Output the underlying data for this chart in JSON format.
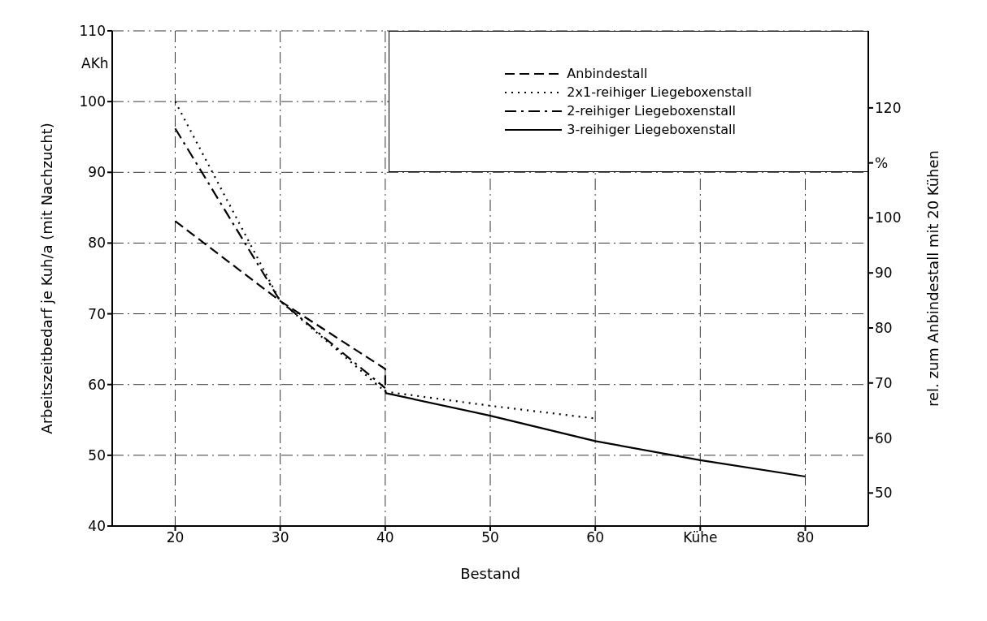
{
  "chart_data": {
    "type": "line",
    "xlabel": "Bestand",
    "ylabel": "Arbeitszeitbedarf je Kuh/a (mit Nachzucht)",
    "y2label": "rel. zum Anbindestall mit 20 Kühen",
    "annotations": [
      "AKh"
    ],
    "xlim": [
      14,
      86
    ],
    "xticks": [
      20,
      30,
      40,
      50,
      60,
      {
        "value": 70,
        "label": "Kühe"
      },
      80
    ],
    "ylim": [
      40,
      110
    ],
    "yticks": [
      40,
      50,
      60,
      70,
      80,
      90,
      100,
      110
    ],
    "y2lim": [
      44,
      134
    ],
    "y2ticks": [
      50,
      60,
      70,
      80,
      90,
      100,
      {
        "value": 110,
        "label": "%"
      },
      120
    ],
    "grid": true,
    "legend": "top right",
    "marker": "none",
    "series": [
      {
        "name": "Anbindestall",
        "color": "#000000",
        "line_style": "dashed",
        "x": [
          20,
          30,
          40,
          40
        ],
        "values": [
          83.1,
          71.8,
          62.2,
          59
        ]
      },
      {
        "name": "2x1-reihiger Liegeboxenstall",
        "color": "#000000",
        "line_style": "dotted",
        "x": [
          20,
          30,
          40,
          50,
          60
        ],
        "values": [
          100,
          71.8,
          59,
          57,
          55.2
        ]
      },
      {
        "name": "2-reihiger Liegeboxenstall",
        "color": "#000000",
        "line_style": "dashdot",
        "x": [
          20,
          30,
          40
        ],
        "values": [
          96.2,
          71.8,
          59.5
        ]
      },
      {
        "name": "3-reihiger Liegeboxenstall",
        "color": "#000000",
        "line_style": "solid",
        "x": [
          40,
          50,
          60,
          70,
          80
        ],
        "values": [
          58.8,
          55.6,
          52,
          49.3,
          47
        ]
      }
    ]
  }
}
